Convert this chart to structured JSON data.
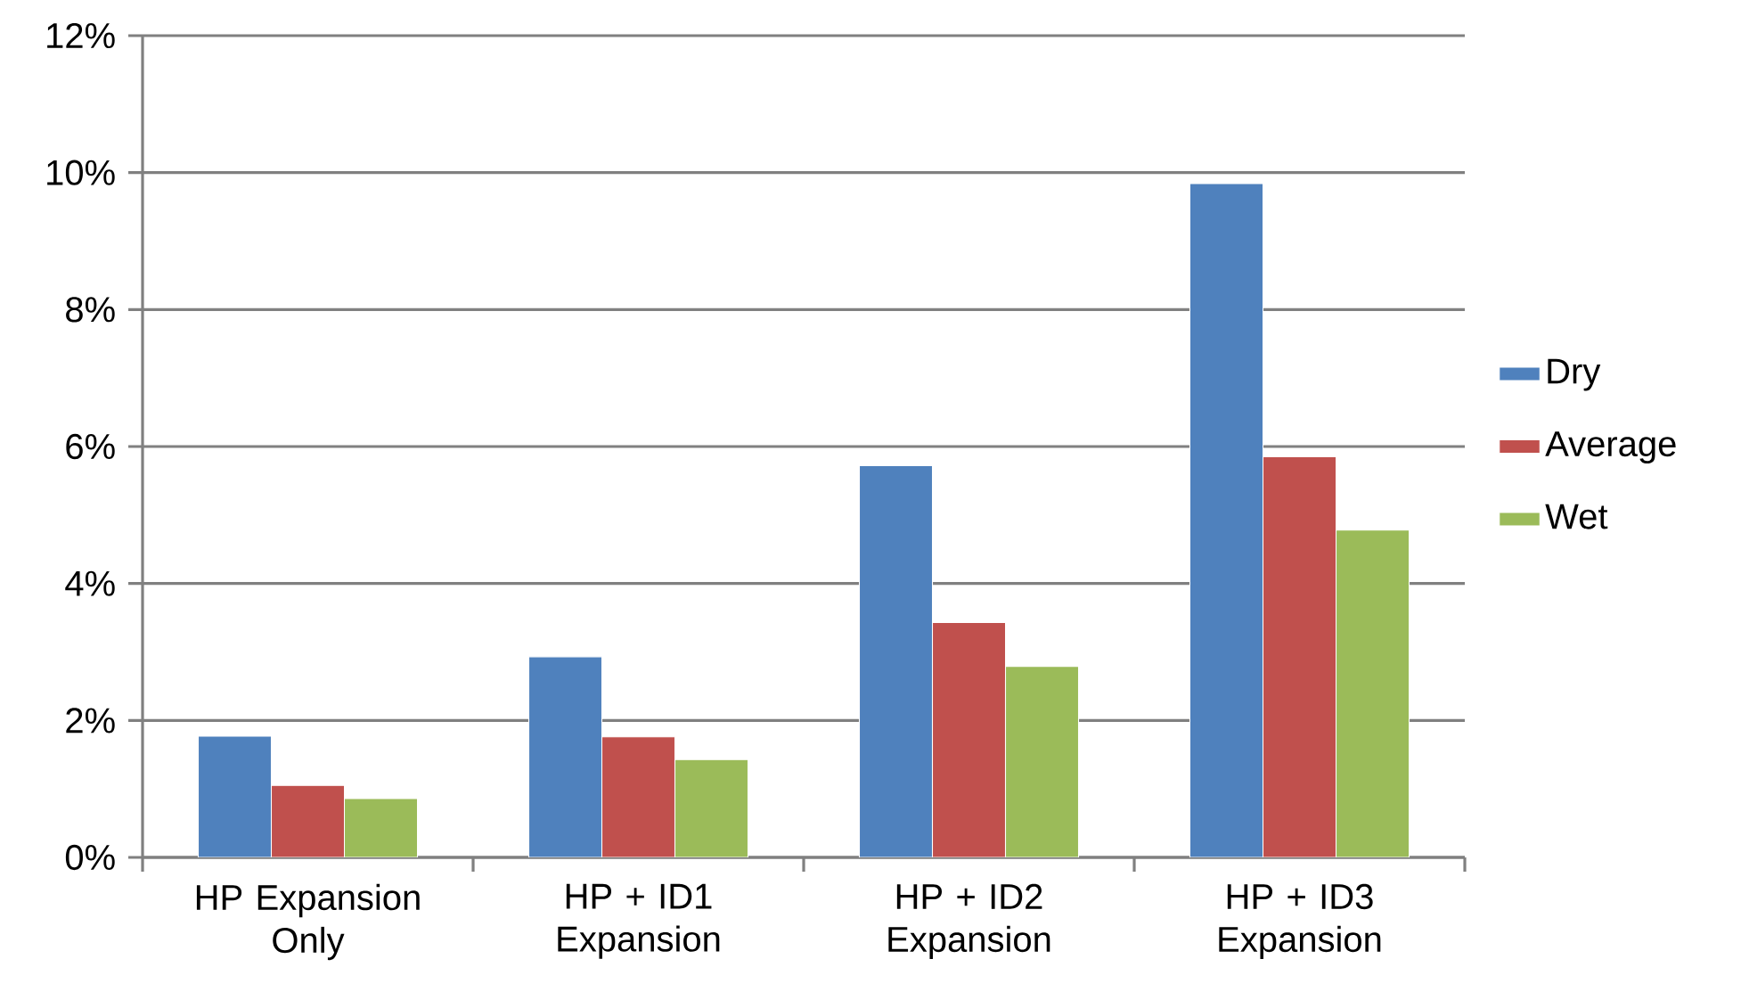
{
  "chart_data": {
    "type": "bar",
    "categories": [
      "HP Expansion Only",
      "HP + ID1 Expansion",
      "HP + ID2 Expansion",
      "HP + ID3 Expansion"
    ],
    "series": [
      {
        "name": "Dry",
        "color": "#4f81bd",
        "values": [
          1.77,
          2.93,
          5.72,
          9.84
        ]
      },
      {
        "name": "Average",
        "color": "#c0504d",
        "values": [
          1.05,
          1.76,
          3.43,
          5.85
        ]
      },
      {
        "name": "Wet",
        "color": "#9bbb59",
        "values": [
          0.86,
          1.43,
          2.79,
          4.78
        ]
      }
    ],
    "ylim": [
      0,
      12
    ],
    "yticks": [
      {
        "value": 0,
        "label": "0%"
      },
      {
        "value": 2,
        "label": "2%"
      },
      {
        "value": 4,
        "label": "4%"
      },
      {
        "value": 6,
        "label": "6%"
      },
      {
        "value": 8,
        "label": "8%"
      },
      {
        "value": 10,
        "label": "10%"
      },
      {
        "value": 12,
        "label": "12%"
      }
    ],
    "grid": "y",
    "legend": "right"
  }
}
